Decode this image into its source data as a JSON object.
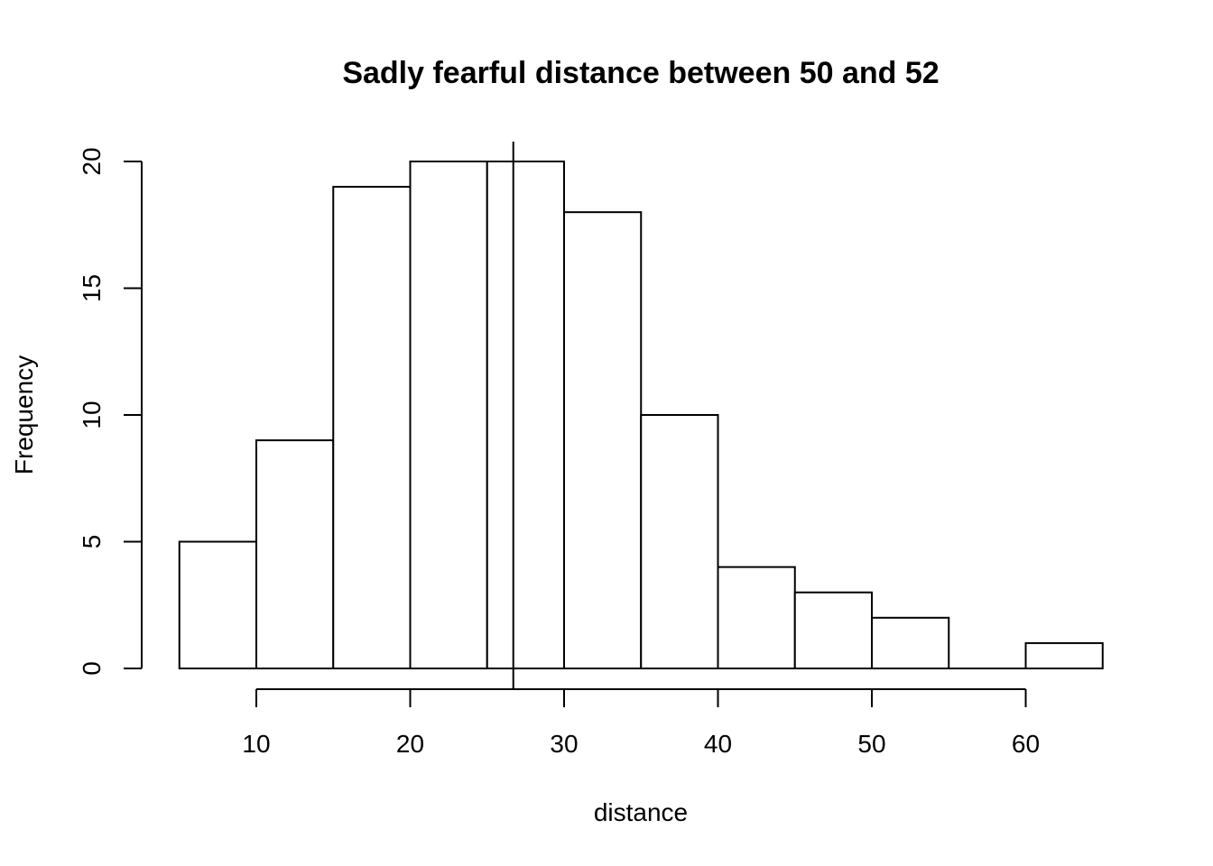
{
  "chart_data": {
    "type": "bar",
    "title": "Sadly fearful distance between 50 and 52",
    "xlabel": "distance",
    "ylabel": "Frequency",
    "bins": [
      {
        "start": 5,
        "end": 10,
        "count": 5
      },
      {
        "start": 10,
        "end": 15,
        "count": 9
      },
      {
        "start": 15,
        "end": 20,
        "count": 19
      },
      {
        "start": 20,
        "end": 25,
        "count": 20
      },
      {
        "start": 25,
        "end": 30,
        "count": 20
      },
      {
        "start": 30,
        "end": 35,
        "count": 18
      },
      {
        "start": 35,
        "end": 40,
        "count": 10
      },
      {
        "start": 40,
        "end": 45,
        "count": 4
      },
      {
        "start": 45,
        "end": 50,
        "count": 3
      },
      {
        "start": 50,
        "end": 55,
        "count": 2
      },
      {
        "start": 55,
        "end": 60,
        "count": 0
      },
      {
        "start": 60,
        "end": 65,
        "count": 1
      }
    ],
    "x_ticks": [
      10,
      20,
      30,
      40,
      50,
      60
    ],
    "y_ticks": [
      0,
      5,
      10,
      15,
      20
    ],
    "xlim": [
      5,
      65
    ],
    "ylim": [
      0,
      20
    ],
    "reference_line_x": 26.7,
    "grid": false,
    "legend": "none",
    "bar_fill": "#ffffff",
    "stroke_color": "#000000"
  }
}
